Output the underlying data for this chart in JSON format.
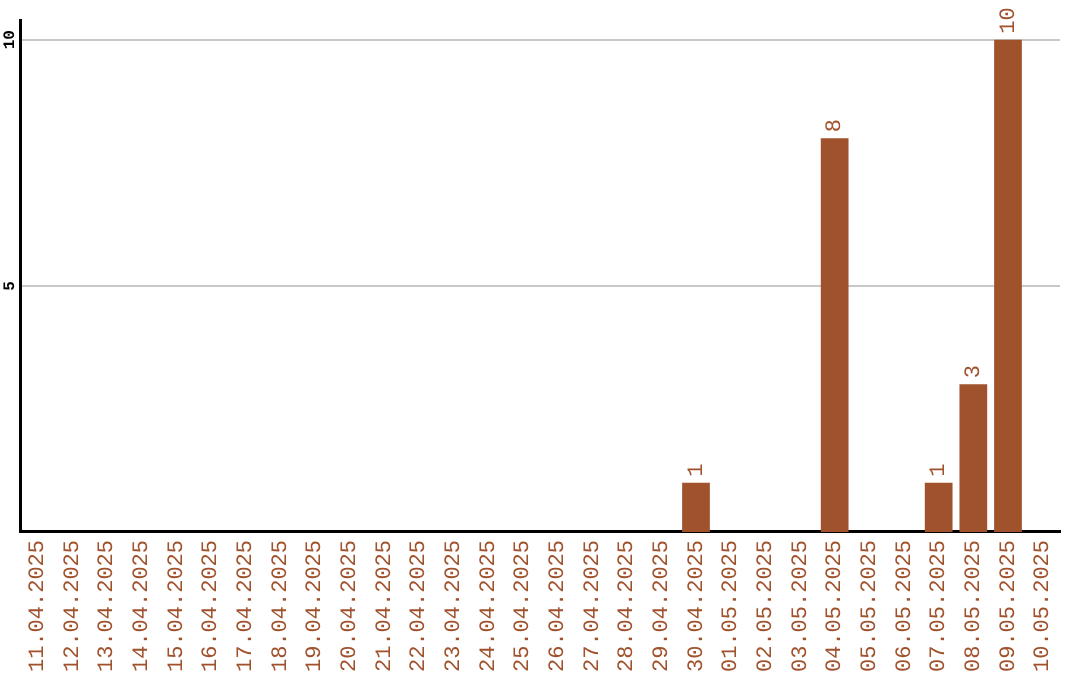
{
  "chart_data": {
    "type": "bar",
    "categories": [
      "11.04.2025",
      "12.04.2025",
      "13.04.2025",
      "14.04.2025",
      "15.04.2025",
      "16.04.2025",
      "17.04.2025",
      "18.04.2025",
      "19.04.2025",
      "20.04.2025",
      "21.04.2025",
      "22.04.2025",
      "23.04.2025",
      "24.04.2025",
      "25.04.2025",
      "26.04.2025",
      "27.04.2025",
      "28.04.2025",
      "29.04.2025",
      "30.04.2025",
      "01.05.2025",
      "02.05.2025",
      "03.05.2025",
      "04.05.2025",
      "05.05.2025",
      "06.05.2025",
      "07.05.2025",
      "08.05.2025",
      "09.05.2025",
      "10.05.2025"
    ],
    "values": [
      0,
      0,
      0,
      0,
      0,
      0,
      0,
      0,
      0,
      0,
      0,
      0,
      0,
      0,
      0,
      0,
      0,
      0,
      0,
      1,
      0,
      0,
      0,
      8,
      0,
      0,
      1,
      3,
      10,
      0
    ],
    "value_labels": [
      null,
      null,
      null,
      null,
      null,
      null,
      null,
      null,
      null,
      null,
      null,
      null,
      null,
      null,
      null,
      null,
      null,
      null,
      null,
      "1",
      null,
      null,
      null,
      "8",
      null,
      null,
      "1",
      "3",
      "10",
      null
    ],
    "color": "#a0522d",
    "ylim": [
      0,
      10.4
    ],
    "yticks": [
      5,
      10
    ],
    "grid": "y",
    "legend": false
  }
}
